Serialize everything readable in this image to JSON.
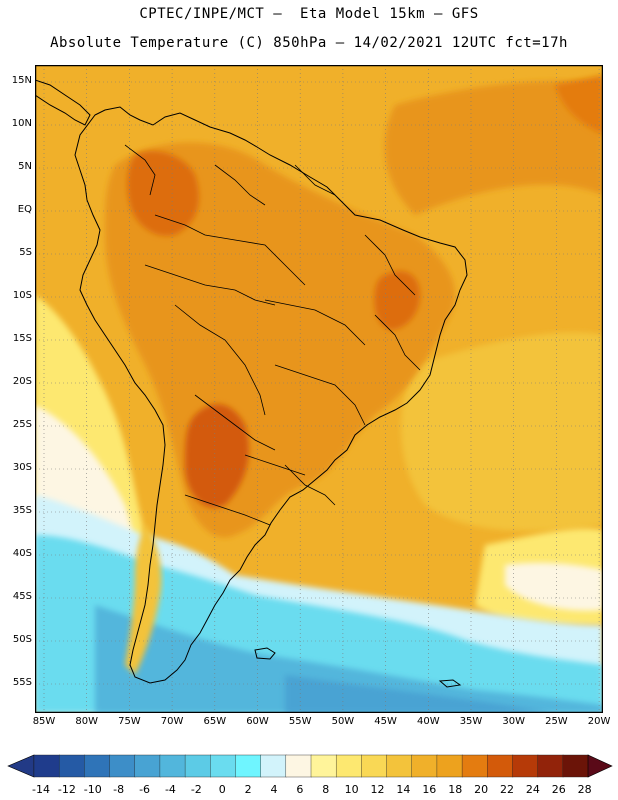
{
  "header": {
    "line1": "CPTEC/INPE/MCT –  Eta Model 15km – GFS",
    "line2": "Absolute Temperature (C) 850hPa – 14/02/2021 12UTC fct=17h"
  },
  "map": {
    "lat_labels": [
      "15N",
      "10N",
      "5N",
      "EQ",
      "5S",
      "10S",
      "15S",
      "20S",
      "25S",
      "30S",
      "35S",
      "40S",
      "45S",
      "50S",
      "55S"
    ],
    "lon_labels": [
      "85W",
      "80W",
      "75W",
      "70W",
      "65W",
      "60W",
      "55W",
      "50W",
      "45W",
      "40W",
      "35W",
      "30W",
      "25W",
      "20W"
    ],
    "land_icon": "coastline-outline",
    "grid_style": "dotted"
  },
  "colorbar": {
    "labels": [
      "-14",
      "-12",
      "-10",
      "-8",
      "-6",
      "-4",
      "-2",
      "0",
      "2",
      "4",
      "6",
      "8",
      "10",
      "12",
      "14",
      "16",
      "18",
      "20",
      "22",
      "24",
      "26",
      "28"
    ],
    "colors": [
      "#1f3c8c",
      "#255aa5",
      "#2f74b8",
      "#3d8ec8",
      "#48a3d3",
      "#52b6dc",
      "#5ccbe6",
      "#6adcef",
      "#6ff5ff",
      "#d2f3fb",
      "#fdf6e3",
      "#fff49a",
      "#fde870",
      "#f9d855",
      "#f3c33b",
      "#f0b02a",
      "#eda21e",
      "#e47c10",
      "#d35a0a",
      "#b63a08",
      "#92230a",
      "#6b1408"
    ]
  }
}
